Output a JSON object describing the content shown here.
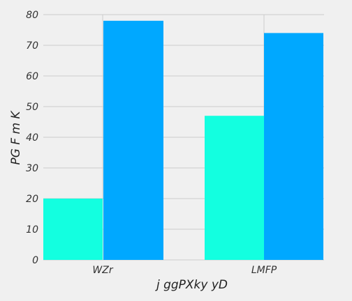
{
  "chart_data": {
    "type": "bar",
    "title": "",
    "xlabel": "j ggPXky yD",
    "ylabel": "PG F m K",
    "categories": [
      "WZr",
      "LMFP"
    ],
    "series": [
      {
        "values": [
          20,
          47
        ],
        "color": "#13ffe0"
      },
      {
        "values": [
          78,
          74
        ],
        "color": "#00a8ff"
      }
    ],
    "ylim": [
      0,
      80
    ],
    "yticks": [
      0,
      10,
      20,
      30,
      40,
      50,
      60,
      70,
      80
    ],
    "grid": true,
    "legend": "none"
  }
}
